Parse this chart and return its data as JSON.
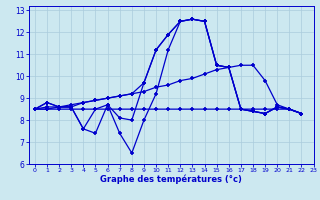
{
  "bg_color": "#cce8f0",
  "grid_color": "#aaccdd",
  "line_color": "#0000cc",
  "text_color": "#0000cc",
  "xlabel": "Graphe des températures (°c)",
  "xlim": [
    -0.5,
    23
  ],
  "ylim": [
    6,
    13.2
  ],
  "yticks": [
    6,
    7,
    8,
    9,
    10,
    11,
    12,
    13
  ],
  "xticks": [
    0,
    1,
    2,
    3,
    4,
    5,
    6,
    7,
    8,
    9,
    10,
    11,
    12,
    13,
    14,
    15,
    16,
    17,
    18,
    19,
    20,
    21,
    22,
    23
  ],
  "line1_x": [
    0,
    1,
    2,
    3,
    4,
    5,
    6,
    7,
    8,
    9,
    10,
    11,
    12,
    13,
    14,
    15,
    16,
    17,
    18,
    19,
    20,
    21,
    22
  ],
  "line1_y": [
    8.5,
    8.8,
    8.6,
    8.6,
    7.6,
    8.5,
    8.7,
    8.1,
    8.0,
    9.7,
    11.2,
    11.9,
    12.5,
    12.6,
    12.5,
    10.5,
    10.4,
    8.5,
    8.4,
    8.3,
    8.6,
    8.5,
    8.3
  ],
  "line2_x": [
    0,
    1,
    2,
    3,
    4,
    5,
    6,
    7,
    8,
    9,
    10,
    11,
    12,
    13,
    14,
    15,
    16,
    17,
    18,
    19,
    20,
    21,
    22
  ],
  "line2_y": [
    8.5,
    8.5,
    8.5,
    8.5,
    8.5,
    8.5,
    8.5,
    8.5,
    8.5,
    8.5,
    8.5,
    8.5,
    8.5,
    8.5,
    8.5,
    8.5,
    8.5,
    8.5,
    8.5,
    8.5,
    8.5,
    8.5,
    8.3
  ],
  "line3_x": [
    0,
    1,
    2,
    3,
    4,
    5,
    6,
    7,
    8,
    9,
    10,
    11,
    12,
    13,
    14,
    15,
    16,
    17,
    18,
    19,
    20,
    21,
    22
  ],
  "line3_y": [
    8.5,
    8.6,
    8.6,
    8.7,
    8.8,
    8.9,
    9.0,
    9.1,
    9.2,
    9.3,
    9.5,
    9.6,
    9.8,
    9.9,
    10.1,
    10.3,
    10.4,
    10.5,
    10.5,
    9.8,
    8.7,
    8.5,
    8.3
  ],
  "line4_x": [
    0,
    1,
    2,
    3,
    4,
    5,
    6,
    7,
    8,
    9,
    10,
    11,
    12,
    13,
    14,
    15,
    16,
    17,
    18,
    19,
    20,
    21,
    22
  ],
  "line4_y": [
    8.5,
    8.5,
    8.6,
    8.6,
    7.6,
    7.4,
    8.7,
    7.4,
    6.5,
    8.0,
    9.2,
    11.2,
    12.5,
    12.6,
    12.5,
    10.5,
    10.4,
    8.5,
    8.4,
    8.3,
    8.6,
    8.5,
    8.3
  ],
  "line5_x": [
    0,
    1,
    2,
    3,
    4,
    5,
    6,
    7,
    8,
    9,
    10,
    11,
    12,
    13,
    14,
    15,
    16,
    17,
    18,
    19,
    20,
    21,
    22
  ],
  "line5_y": [
    8.5,
    8.8,
    8.6,
    8.6,
    8.8,
    8.9,
    9.0,
    9.1,
    9.2,
    9.7,
    11.2,
    11.9,
    12.5,
    12.6,
    12.5,
    10.5,
    10.4,
    8.5,
    8.4,
    8.3,
    8.6,
    8.5,
    8.3
  ]
}
